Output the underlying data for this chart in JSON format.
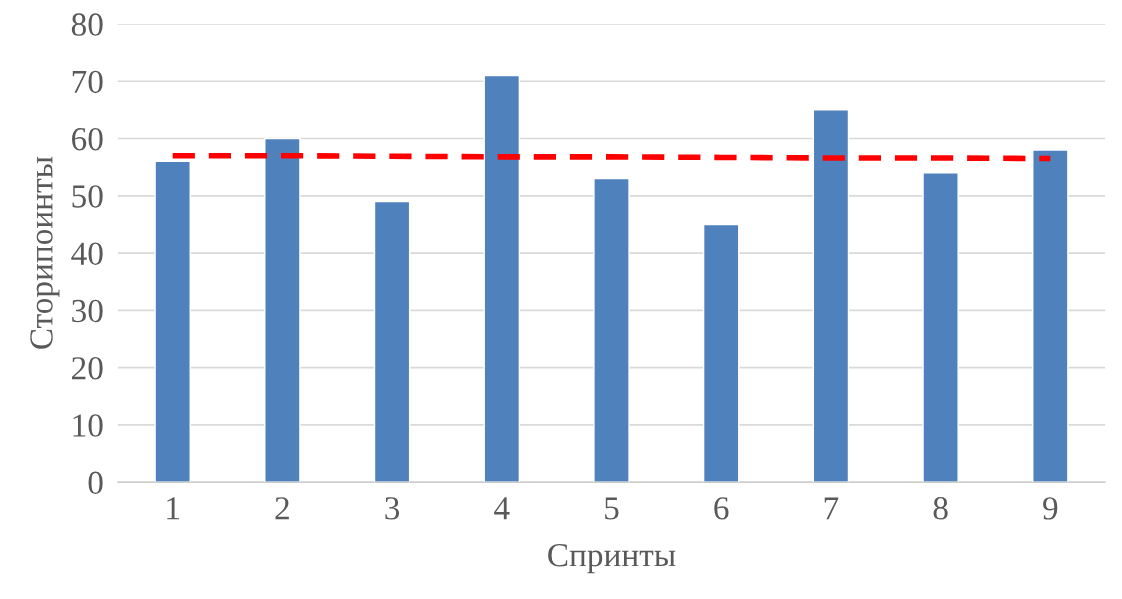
{
  "chart_data": {
    "type": "bar",
    "xlabel": "Спринты",
    "ylabel": "Сторипоинты",
    "categories": [
      "1",
      "2",
      "3",
      "4",
      "5",
      "6",
      "7",
      "8",
      "9"
    ],
    "series": [
      {
        "color": "#4f81bd",
        "values": [
          56,
          60,
          49,
          71,
          53,
          45,
          65,
          54,
          58
        ]
      },
      {
        "type": "line",
        "color": "#ff0000",
        "line_style": "dashed",
        "values": [
          57.0,
          57.0,
          56.9,
          56.8,
          56.8,
          56.7,
          56.6,
          56.6,
          56.5
        ]
      }
    ],
    "ylim": [
      0,
      80
    ],
    "yticks": [
      0,
      10,
      20,
      30,
      40,
      50,
      60,
      70,
      80
    ],
    "grid": "y",
    "legend": false
  }
}
